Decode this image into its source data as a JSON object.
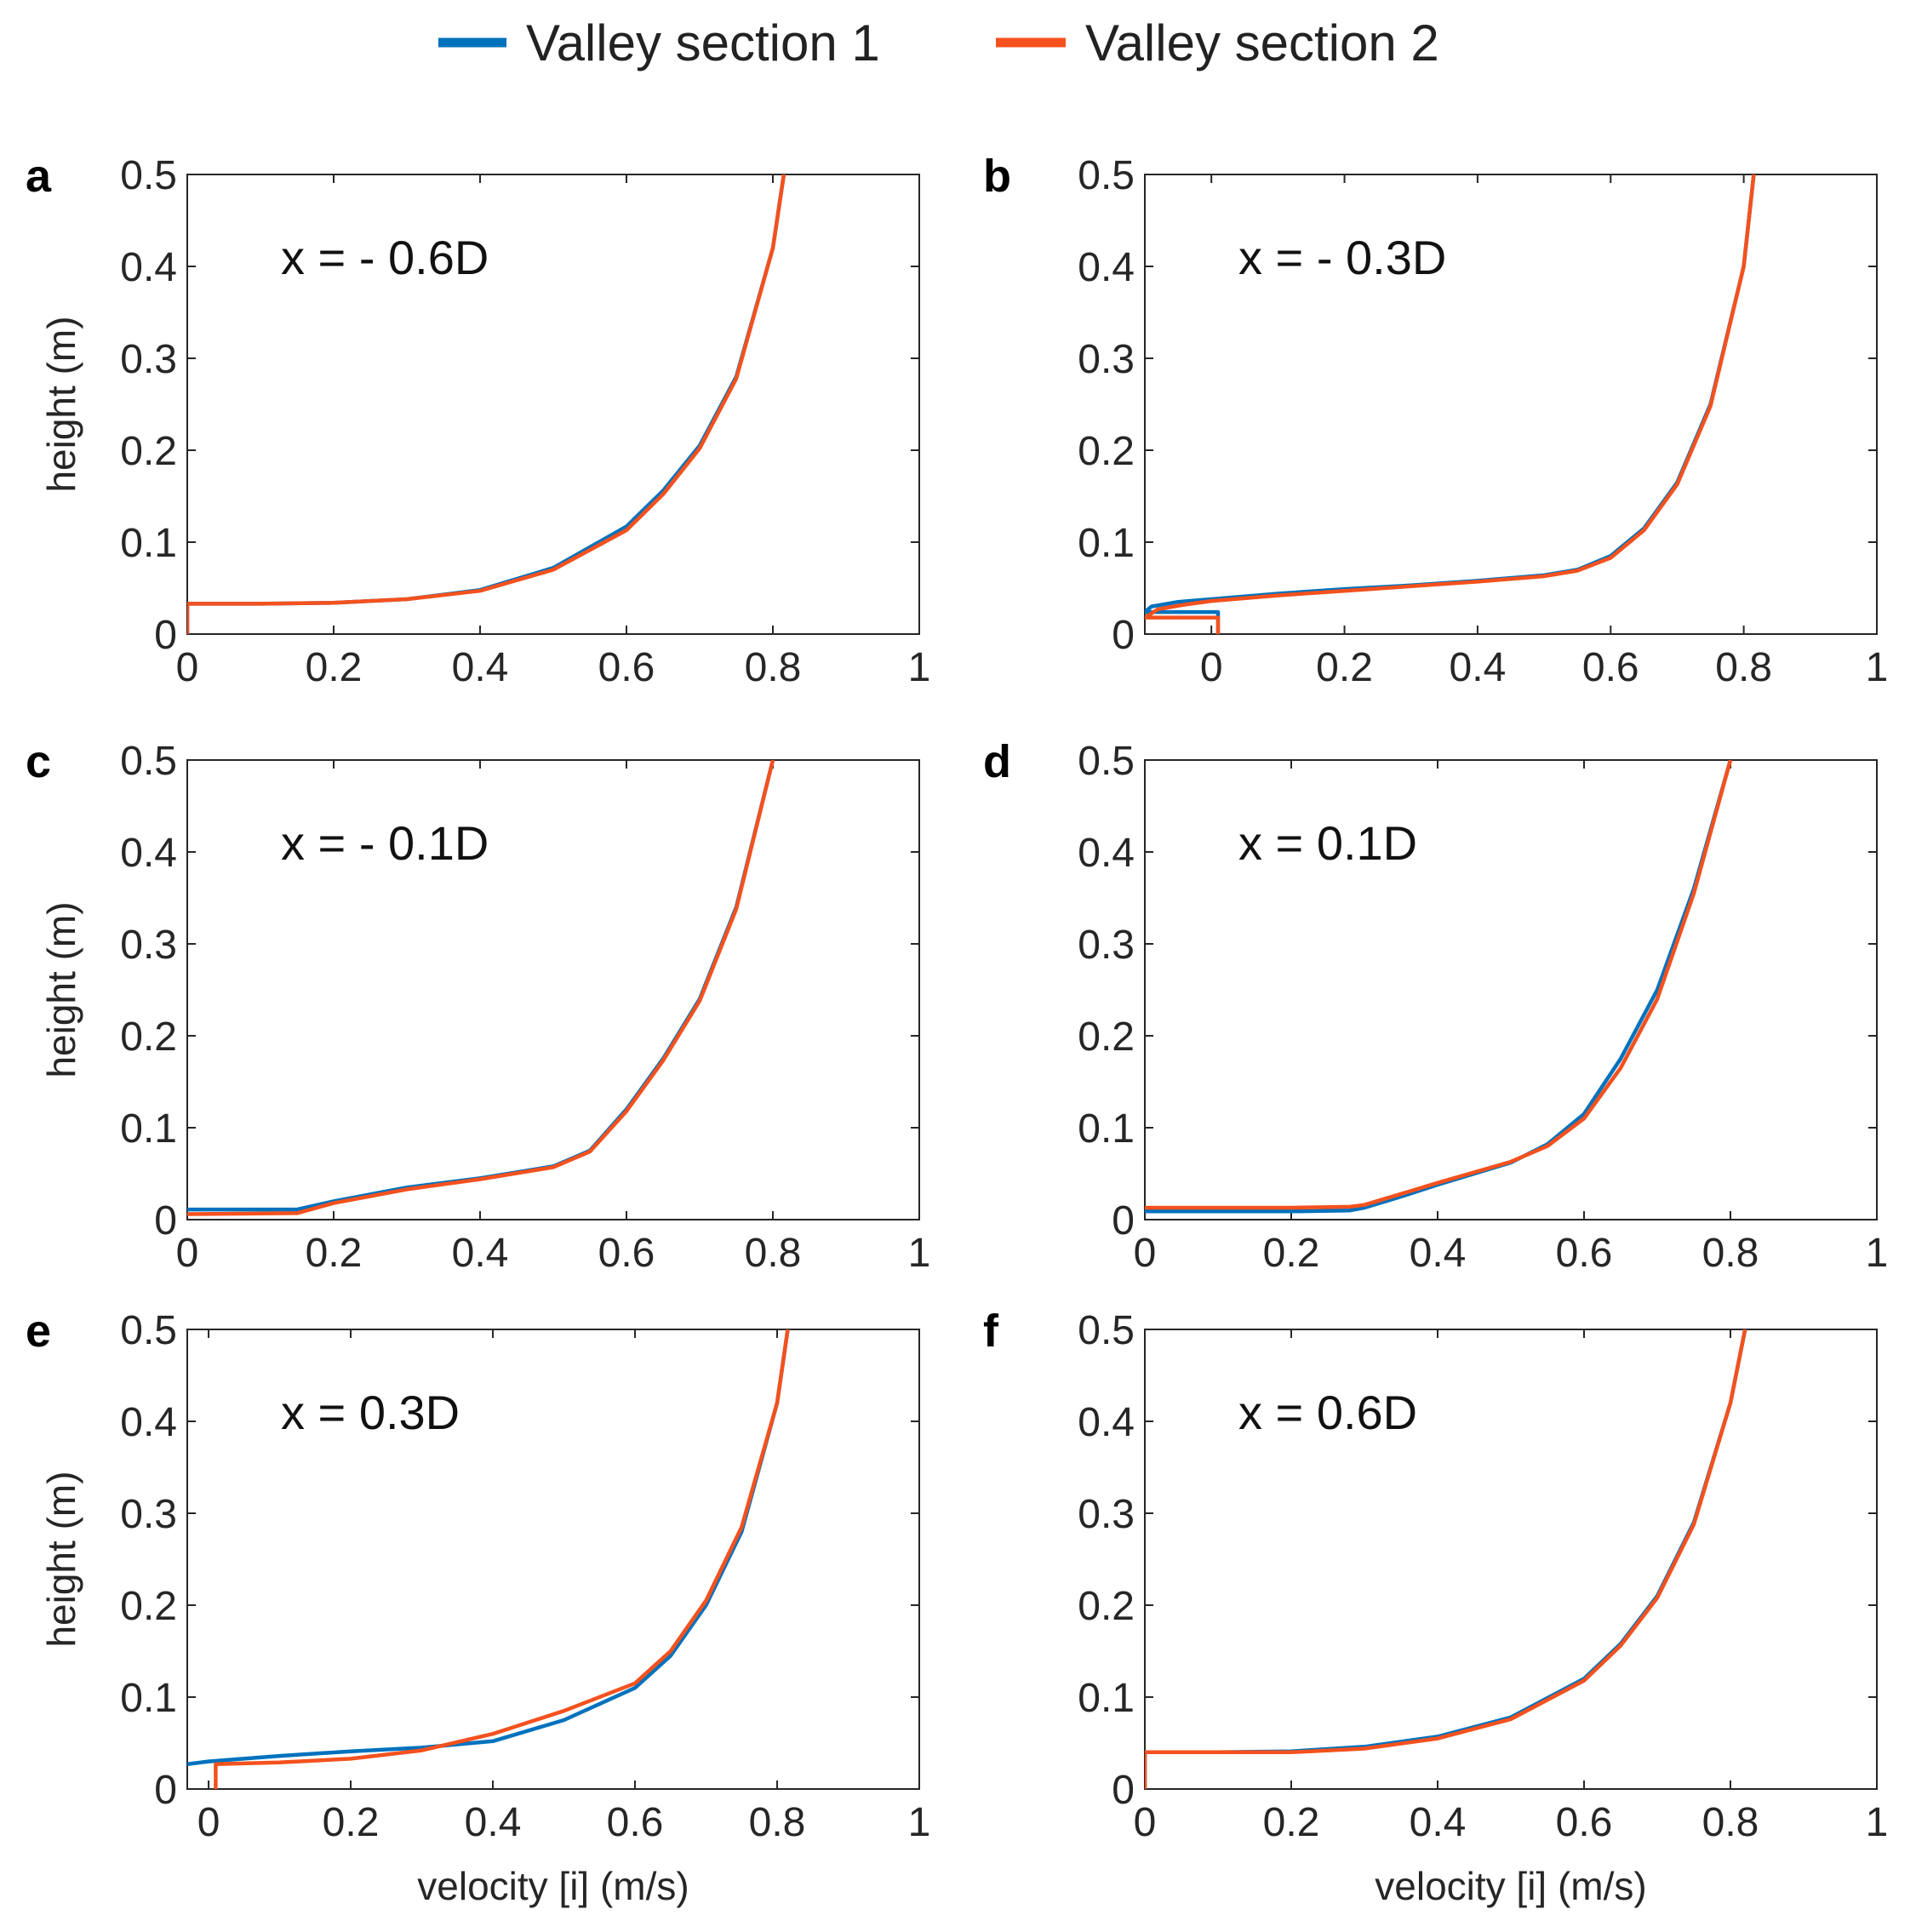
{
  "legend": {
    "entries": [
      {
        "name": "Valley section 1",
        "color": "#0072BD"
      },
      {
        "name": "Valley section 2",
        "color": "#F4511E"
      }
    ]
  },
  "chart_data": [
    {
      "type": "line",
      "panel": "a",
      "annotation": "x = - 0.6D",
      "xlabel": "",
      "ylabel": "height (m)",
      "xlim": [
        0,
        1
      ],
      "ylim": [
        0,
        0.5
      ],
      "xticks": [
        0,
        0.2,
        0.4,
        0.6,
        0.8,
        1
      ],
      "xtick_labels": [
        "0",
        "0.2",
        "0.4",
        "0.6",
        "0.8",
        "1"
      ],
      "yticks": [
        0,
        0.1,
        0.2,
        0.3,
        0.4,
        0.5
      ],
      "ytick_labels": [
        "0",
        "0.1",
        "0.2",
        "0.3",
        "0.4",
        "0.5"
      ],
      "series": [
        {
          "name": "Valley section 1",
          "color": "#0072BD",
          "x": [
            0,
            0,
            0.1,
            0.2,
            0.3,
            0.4,
            0.5,
            0.6,
            0.65,
            0.7,
            0.75,
            0.8,
            0.815
          ],
          "y": [
            0,
            0.033,
            0.033,
            0.034,
            0.038,
            0.048,
            0.072,
            0.117,
            0.156,
            0.205,
            0.28,
            0.42,
            0.5
          ]
        },
        {
          "name": "Valley section 2",
          "color": "#F4511E",
          "x": [
            0,
            0,
            0.1,
            0.2,
            0.3,
            0.4,
            0.5,
            0.6,
            0.65,
            0.7,
            0.75,
            0.8,
            0.815
          ],
          "y": [
            0,
            0.033,
            0.033,
            0.034,
            0.038,
            0.047,
            0.07,
            0.113,
            0.152,
            0.202,
            0.278,
            0.42,
            0.5
          ]
        }
      ]
    },
    {
      "type": "line",
      "panel": "b",
      "annotation": "x = - 0.3D",
      "xlabel": "",
      "ylabel": "",
      "xlim": [
        -0.1,
        1
      ],
      "ylim": [
        0,
        0.5
      ],
      "xticks": [
        0,
        0.2,
        0.4,
        0.6,
        0.8,
        1
      ],
      "xtick_labels": [
        "0",
        "0.2",
        "0.4",
        "0.6",
        "0.8",
        "1"
      ],
      "yticks": [
        0,
        0.1,
        0.2,
        0.3,
        0.4,
        0.5
      ],
      "ytick_labels": [
        "0",
        "0.1",
        "0.2",
        "0.3",
        "0.4",
        "0.5"
      ],
      "series": [
        {
          "name": "Valley section 1",
          "color": "#0072BD",
          "x": [
            0.01,
            0.01,
            -0.1,
            -0.09,
            -0.05,
            0,
            0.1,
            0.2,
            0.3,
            0.4,
            0.5,
            0.55,
            0.6,
            0.65,
            0.7,
            0.75,
            0.8,
            0.815
          ],
          "y": [
            0,
            0.024,
            0.024,
            0.03,
            0.035,
            0.038,
            0.044,
            0.049,
            0.053,
            0.058,
            0.064,
            0.07,
            0.085,
            0.115,
            0.165,
            0.25,
            0.4,
            0.5
          ]
        },
        {
          "name": "Valley section 2",
          "color": "#F4511E",
          "x": [
            0.01,
            0.01,
            -0.1,
            -0.08,
            -0.04,
            0,
            0.1,
            0.2,
            0.3,
            0.4,
            0.5,
            0.55,
            0.6,
            0.65,
            0.7,
            0.75,
            0.8,
            0.815
          ],
          "y": [
            0,
            0.018,
            0.018,
            0.027,
            0.032,
            0.036,
            0.042,
            0.047,
            0.052,
            0.057,
            0.063,
            0.069,
            0.083,
            0.113,
            0.163,
            0.248,
            0.4,
            0.5
          ]
        }
      ]
    },
    {
      "type": "line",
      "panel": "c",
      "annotation": "x = - 0.1D",
      "xlabel": "",
      "ylabel": "height (m)",
      "xlim": [
        0,
        1
      ],
      "ylim": [
        0,
        0.5
      ],
      "xticks": [
        0,
        0.2,
        0.4,
        0.6,
        0.8,
        1
      ],
      "xtick_labels": [
        "0",
        "0.2",
        "0.4",
        "0.6",
        "0.8",
        "1"
      ],
      "yticks": [
        0,
        0.1,
        0.2,
        0.3,
        0.4,
        0.5
      ],
      "ytick_labels": [
        "0",
        "0.1",
        "0.2",
        "0.3",
        "0.4",
        "0.5"
      ],
      "series": [
        {
          "name": "Valley section 1",
          "color": "#0072BD",
          "x": [
            0,
            0.15,
            0.2,
            0.3,
            0.4,
            0.5,
            0.55,
            0.6,
            0.65,
            0.7,
            0.75,
            0.8
          ],
          "y": [
            0.011,
            0.011,
            0.02,
            0.035,
            0.045,
            0.058,
            0.075,
            0.12,
            0.175,
            0.24,
            0.34,
            0.5
          ]
        },
        {
          "name": "Valley section 2",
          "color": "#F4511E",
          "x": [
            0,
            0.15,
            0.2,
            0.3,
            0.4,
            0.5,
            0.55,
            0.6,
            0.65,
            0.7,
            0.75,
            0.8
          ],
          "y": [
            0.006,
            0.007,
            0.018,
            0.033,
            0.044,
            0.057,
            0.074,
            0.118,
            0.173,
            0.238,
            0.338,
            0.5
          ]
        }
      ]
    },
    {
      "type": "line",
      "panel": "d",
      "annotation": "x = 0.1D",
      "xlabel": "",
      "ylabel": "",
      "xlim": [
        0,
        1
      ],
      "ylim": [
        0,
        0.5
      ],
      "xticks": [
        0,
        0.2,
        0.4,
        0.6,
        0.8,
        1
      ],
      "xtick_labels": [
        "0",
        "0.2",
        "0.4",
        "0.6",
        "0.8",
        "1"
      ],
      "yticks": [
        0,
        0.1,
        0.2,
        0.3,
        0.4,
        0.5
      ],
      "ytick_labels": [
        "0",
        "0.1",
        "0.2",
        "0.3",
        "0.4",
        "0.5"
      ],
      "series": [
        {
          "name": "Valley section 1",
          "color": "#0072BD",
          "x": [
            0,
            0.2,
            0.28,
            0.3,
            0.35,
            0.4,
            0.5,
            0.55,
            0.6,
            0.65,
            0.7,
            0.75,
            0.8
          ],
          "y": [
            0.009,
            0.009,
            0.01,
            0.013,
            0.025,
            0.038,
            0.062,
            0.082,
            0.115,
            0.175,
            0.25,
            0.36,
            0.5
          ]
        },
        {
          "name": "Valley section 2",
          "color": "#F4511E",
          "x": [
            0,
            0.2,
            0.28,
            0.3,
            0.35,
            0.4,
            0.5,
            0.55,
            0.6,
            0.65,
            0.7,
            0.75,
            0.8
          ],
          "y": [
            0.013,
            0.013,
            0.014,
            0.016,
            0.028,
            0.04,
            0.063,
            0.08,
            0.11,
            0.165,
            0.24,
            0.355,
            0.5
          ]
        }
      ]
    },
    {
      "type": "line",
      "panel": "e",
      "annotation": "x = 0.3D",
      "xlabel": "velocity [i] (m/s)",
      "ylabel": "height (m)",
      "xlim": [
        -0.03,
        1
      ],
      "ylim": [
        0,
        0.5
      ],
      "xticks": [
        0,
        0.2,
        0.4,
        0.6,
        0.8,
        1
      ],
      "xtick_labels": [
        "0",
        "0.2",
        "0.4",
        "0.6",
        "0.8",
        "1"
      ],
      "yticks": [
        0,
        0.1,
        0.2,
        0.3,
        0.4,
        0.5
      ],
      "ytick_labels": [
        "0",
        "0.1",
        "0.2",
        "0.3",
        "0.4",
        "0.5"
      ],
      "series": [
        {
          "name": "Valley section 1",
          "color": "#0072BD",
          "x": [
            -0.03,
            0,
            0.1,
            0.2,
            0.3,
            0.4,
            0.5,
            0.6,
            0.65,
            0.7,
            0.75,
            0.8,
            0.815
          ],
          "y": [
            0.027,
            0.03,
            0.036,
            0.041,
            0.045,
            0.052,
            0.075,
            0.11,
            0.145,
            0.2,
            0.28,
            0.42,
            0.5
          ]
        },
        {
          "name": "Valley section 2",
          "color": "#F4511E",
          "x": [
            0.01,
            0.01,
            0.1,
            0.2,
            0.3,
            0.4,
            0.5,
            0.6,
            0.65,
            0.7,
            0.75,
            0.8,
            0.815
          ],
          "y": [
            0,
            0.027,
            0.029,
            0.033,
            0.042,
            0.06,
            0.085,
            0.115,
            0.15,
            0.205,
            0.285,
            0.42,
            0.5
          ]
        }
      ]
    },
    {
      "type": "line",
      "panel": "f",
      "annotation": "x = 0.6D",
      "xlabel": "velocity [i] (m/s)",
      "ylabel": "",
      "xlim": [
        0,
        1
      ],
      "ylim": [
        0,
        0.5
      ],
      "xticks": [
        0,
        0.2,
        0.4,
        0.6,
        0.8,
        1
      ],
      "xtick_labels": [
        "0",
        "0.2",
        "0.4",
        "0.6",
        "0.8",
        "1"
      ],
      "yticks": [
        0,
        0.1,
        0.2,
        0.3,
        0.4,
        0.5
      ],
      "ytick_labels": [
        "0",
        "0.1",
        "0.2",
        "0.3",
        "0.4",
        "0.5"
      ],
      "series": [
        {
          "name": "Valley section 1",
          "color": "#0072BD",
          "x": [
            0,
            0,
            0.1,
            0.2,
            0.3,
            0.4,
            0.5,
            0.6,
            0.65,
            0.7,
            0.75,
            0.8,
            0.82
          ],
          "y": [
            0,
            0.04,
            0.04,
            0.041,
            0.046,
            0.057,
            0.078,
            0.12,
            0.158,
            0.21,
            0.29,
            0.42,
            0.5
          ]
        },
        {
          "name": "Valley section 2",
          "color": "#F4511E",
          "x": [
            0,
            0,
            0.1,
            0.2,
            0.3,
            0.4,
            0.5,
            0.6,
            0.65,
            0.7,
            0.75,
            0.8,
            0.82
          ],
          "y": [
            0,
            0.04,
            0.04,
            0.04,
            0.044,
            0.055,
            0.076,
            0.118,
            0.156,
            0.208,
            0.288,
            0.42,
            0.5
          ]
        }
      ]
    }
  ]
}
